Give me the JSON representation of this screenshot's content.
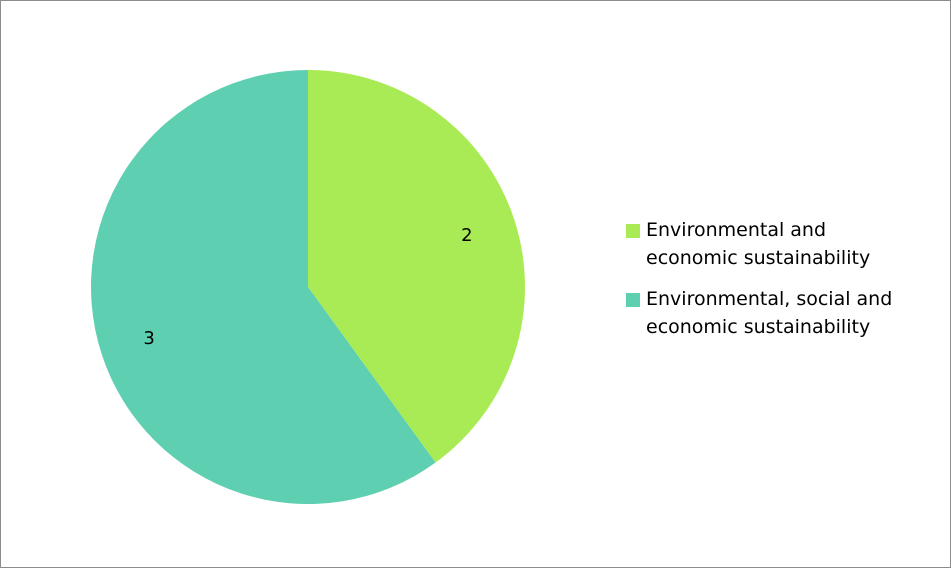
{
  "chart_data": {
    "type": "pie",
    "title": "",
    "categories": [
      "Environmental and economic sustainability",
      "Environmental, social and economic sustainability"
    ],
    "values": [
      2,
      3
    ],
    "data_labels": [
      "2",
      "3"
    ],
    "colors": [
      "#a9eb55",
      "#5ecfb1"
    ],
    "legend_placement": "right",
    "legend": [
      {
        "line1": "Environmental and",
        "line2": "economic sustainability"
      },
      {
        "line1": "Environmental, social and",
        "line2": "economic sustainability"
      }
    ],
    "start_angle_deg": 0,
    "direction": "clockwise"
  }
}
